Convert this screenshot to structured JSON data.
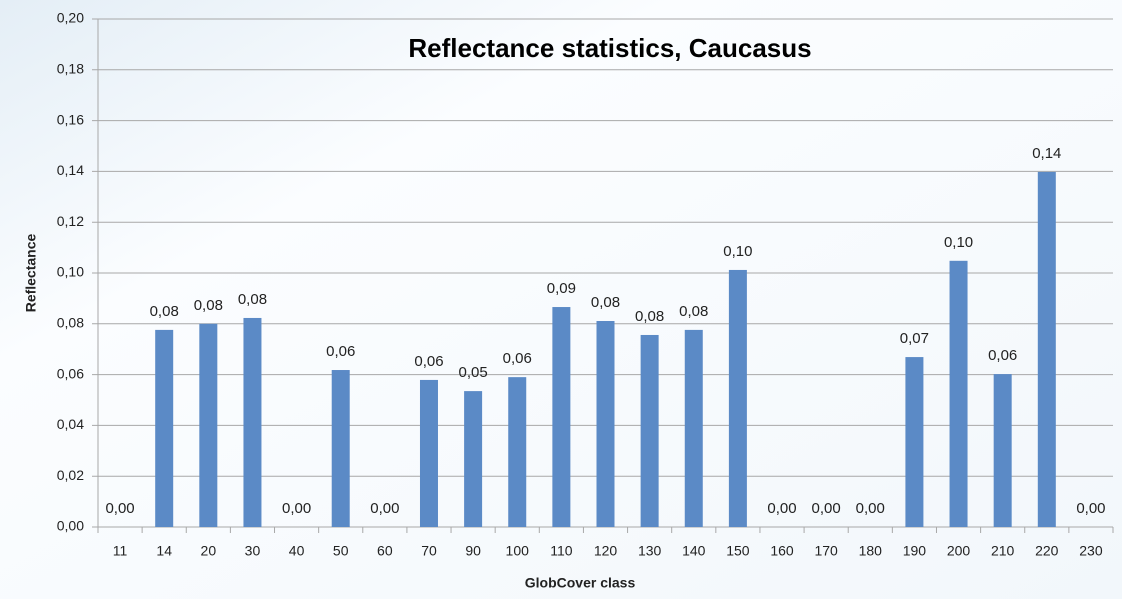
{
  "chart_data": {
    "type": "bar",
    "title": "Reflectance statistics, Caucasus",
    "x_label": "GlobCover class",
    "y_label": "Reflectance",
    "categories": [
      "11",
      "14",
      "20",
      "30",
      "40",
      "50",
      "60",
      "70",
      "90",
      "100",
      "110",
      "120",
      "130",
      "140",
      "150",
      "160",
      "170",
      "180",
      "190",
      "200",
      "210",
      "220",
      "230"
    ],
    "values": [
      0,
      0.0776,
      0.08,
      0.0823,
      0,
      0.0618,
      0,
      0.0579,
      0.0535,
      0.059,
      0.0866,
      0.0811,
      0.0756,
      0.0776,
      0.1012,
      0,
      0,
      0,
      0.0669,
      0.1048,
      0.0602,
      0.1398,
      0
    ],
    "value_labels": [
      "0,00",
      "0,08",
      "0,08",
      "0,08",
      "0,00",
      "0,06",
      "0,00",
      "0,06",
      "0,05",
      "0,06",
      "0,09",
      "0,08",
      "0,08",
      "0,08",
      "0,10",
      "0,00",
      "0,00",
      "0,00",
      "0,07",
      "0,10",
      "0,06",
      "0,14",
      "0,00"
    ],
    "color": "#5b8ac6",
    "ylim": [
      0,
      0.2
    ],
    "yticks": [
      {
        "value": 0,
        "label": "0,00"
      },
      {
        "value": 0.02,
        "label": "0,02"
      },
      {
        "value": 0.04,
        "label": "0,04"
      },
      {
        "value": 0.06,
        "label": "0,06"
      },
      {
        "value": 0.08,
        "label": "0,08"
      },
      {
        "value": 0.1,
        "label": "0,10"
      },
      {
        "value": 0.12,
        "label": "0,12"
      },
      {
        "value": 0.14,
        "label": "0,14"
      },
      {
        "value": 0.16,
        "label": "0,16"
      },
      {
        "value": 0.18,
        "label": "0,18"
      },
      {
        "value": 0.2,
        "label": "0,20"
      }
    ],
    "grid": true
  }
}
